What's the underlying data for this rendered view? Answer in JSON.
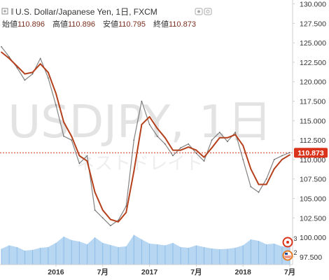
{
  "header": {
    "title": "U.S. Dollar/Japanese Yen, 1日, FXCM",
    "ohlc": [
      {
        "label": "始値",
        "value": "110.896"
      },
      {
        "label": "高値",
        "value": "110.896"
      },
      {
        "label": "安値",
        "value": "110.795"
      },
      {
        "label": "終値",
        "value": "110.873"
      }
    ]
  },
  "watermark": {
    "symbol": "USDJPY, 1日",
    "subtitle": "ネストドレイド"
  },
  "price_badge": "110.873",
  "indicators": {
    "badge_count_1": "3",
    "badge_count_2": "2"
  },
  "colors": {
    "price_line": "#5a5a5a",
    "ma_line": "#b5401c",
    "volume": "#a9cff0",
    "badge": "#d9341b",
    "current_price_line": "#d9341b"
  },
  "chart_data": {
    "type": "line",
    "title": "U.S. Dollar/Japanese Yen, 1日, FXCM",
    "x_tick_labels": [
      "2016",
      "7月",
      "2017",
      "7月",
      "2018",
      "7月"
    ],
    "y_tick_labels": [
      "97.500",
      "100.000",
      "102.500",
      "105.000",
      "107.500",
      "110.000",
      "112.500",
      "115.000",
      "117.500",
      "120.000",
      "122.500",
      "125.000",
      "127.500",
      "130.000"
    ],
    "ylim": [
      96.5,
      130.5
    ],
    "y_axis_side": "right",
    "grid": false,
    "current_price": 110.873,
    "x_domain": [
      "2015-06",
      "2018-07"
    ],
    "series": [
      {
        "style": "price",
        "x": [
          "2015-06",
          "2015-07",
          "2015-08",
          "2015-09",
          "2015-10",
          "2015-11",
          "2015-12",
          "2016-01",
          "2016-02",
          "2016-03",
          "2016-04",
          "2016-05",
          "2016-06",
          "2016-07",
          "2016-08",
          "2016-09",
          "2016-10",
          "2016-11",
          "2016-12",
          "2017-01",
          "2017-02",
          "2017-03",
          "2017-04",
          "2017-05",
          "2017-06",
          "2017-07",
          "2017-08",
          "2017-09",
          "2017-10",
          "2017-11",
          "2017-12",
          "2018-01",
          "2018-02",
          "2018-03",
          "2018-04",
          "2018-05",
          "2018-06",
          "2018-07"
        ],
        "values": [
          124.5,
          123.2,
          121.8,
          120.2,
          121.0,
          123.0,
          120.5,
          117.0,
          113.0,
          112.5,
          109.5,
          110.5,
          103.5,
          102.5,
          101.5,
          102.2,
          104.0,
          112.5,
          117.5,
          114.5,
          113.0,
          112.0,
          110.5,
          111.5,
          112.0,
          110.8,
          109.8,
          112.5,
          113.5,
          112.3,
          113.5,
          110.0,
          106.5,
          105.8,
          107.5,
          110.0,
          110.5,
          110.9
        ]
      },
      {
        "style": "moving_average",
        "x": [
          "2015-06",
          "2015-07",
          "2015-08",
          "2015-09",
          "2015-10",
          "2015-11",
          "2015-12",
          "2016-01",
          "2016-02",
          "2016-03",
          "2016-04",
          "2016-05",
          "2016-06",
          "2016-07",
          "2016-08",
          "2016-09",
          "2016-10",
          "2016-11",
          "2016-12",
          "2017-01",
          "2017-02",
          "2017-03",
          "2017-04",
          "2017-05",
          "2017-06",
          "2017-07",
          "2017-08",
          "2017-09",
          "2017-10",
          "2017-11",
          "2017-12",
          "2018-01",
          "2018-02",
          "2018-03",
          "2018-04",
          "2018-05",
          "2018-06",
          "2018-07"
        ],
        "values": [
          123.8,
          123.0,
          122.0,
          121.0,
          121.2,
          122.3,
          121.2,
          118.5,
          114.8,
          113.0,
          110.5,
          109.8,
          105.8,
          103.5,
          102.3,
          102.0,
          103.2,
          108.5,
          114.5,
          115.5,
          114.0,
          112.8,
          111.2,
          111.2,
          111.6,
          111.2,
          110.3,
          111.5,
          112.8,
          112.8,
          113.2,
          111.8,
          108.8,
          106.8,
          106.8,
          108.8,
          110.0,
          110.6
        ]
      }
    ],
    "volume": [
      0.45,
      0.55,
      0.5,
      0.4,
      0.42,
      0.48,
      0.5,
      0.62,
      0.8,
      0.7,
      0.66,
      0.58,
      0.78,
      0.62,
      0.56,
      0.5,
      0.52,
      0.85,
      0.72,
      0.6,
      0.58,
      0.55,
      0.62,
      0.5,
      0.48,
      0.55,
      0.5,
      0.46,
      0.44,
      0.45,
      0.48,
      0.55,
      0.72,
      0.68,
      0.58,
      0.6,
      0.52,
      0.5
    ]
  }
}
